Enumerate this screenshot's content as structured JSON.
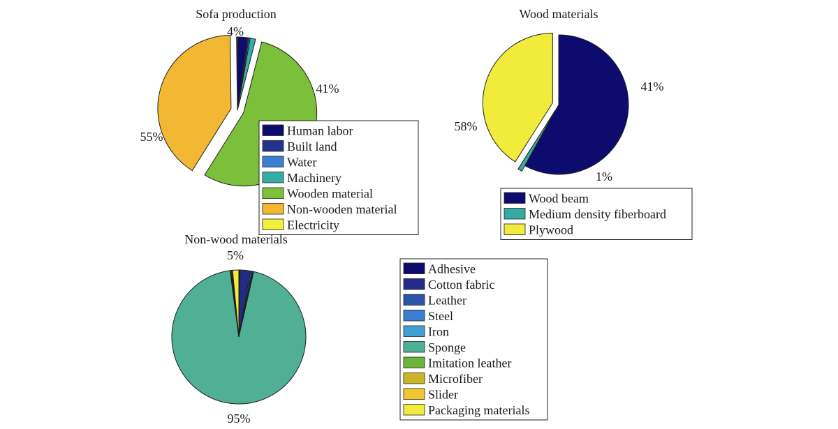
{
  "chart_data": [
    {
      "type": "pie",
      "title": "Sofa production",
      "slices": [
        {
          "name": "Human labor",
          "value": 2.2,
          "color": "#0d0b6e"
        },
        {
          "name": "Built land",
          "value": 0.3,
          "color": "#24328f"
        },
        {
          "name": "Water",
          "value": 0.3,
          "color": "#3a7fd0"
        },
        {
          "name": "Machinery",
          "value": 1.2,
          "color": "#35ada5"
        },
        {
          "name": "Wooden material",
          "value": 55,
          "color": "#7bbf3a"
        },
        {
          "name": "Non-wooden material",
          "value": 41,
          "color": "#f2b733"
        },
        {
          "name": "Electricity",
          "value": 0.2,
          "color": "#f1f13d"
        }
      ],
      "percent_labels": [
        "4%",
        "41%",
        "55%"
      ],
      "legend": [
        "Human labor",
        "Built land",
        "Water",
        "Machinery",
        "Wooden material",
        "Non-wooden material",
        "Electricity"
      ]
    },
    {
      "type": "pie",
      "title": "Wood materials",
      "slices": [
        {
          "name": "Wood beam",
          "value": 58,
          "color": "#0d0b6e"
        },
        {
          "name": "Medium density fiberboard",
          "value": 1,
          "color": "#36aba4"
        },
        {
          "name": "Plywood",
          "value": 41,
          "color": "#f1ec3b"
        }
      ],
      "percent_labels": [
        "58%",
        "1%",
        "41%"
      ],
      "legend": [
        "Wood beam",
        "Medium density fiberboard",
        "Plywood"
      ]
    },
    {
      "type": "pie",
      "title": "Non-wood materials",
      "slices": [
        {
          "name": "Adhesive",
          "value": 0.3,
          "color": "#0d0b6e"
        },
        {
          "name": "Cotton fabric",
          "value": 2.5,
          "color": "#222b88"
        },
        {
          "name": "Leather",
          "value": 0.4,
          "color": "#2c53a8"
        },
        {
          "name": "Steel",
          "value": 0.2,
          "color": "#3a7fd0"
        },
        {
          "name": "Iron",
          "value": 0.2,
          "color": "#3fa0d2"
        },
        {
          "name": "Sponge",
          "value": 95,
          "color": "#4fb096"
        },
        {
          "name": "Imitation leather",
          "value": 0.2,
          "color": "#6cb53a"
        },
        {
          "name": "Microfiber",
          "value": 0.2,
          "color": "#c9b526"
        },
        {
          "name": "Slider",
          "value": 0.2,
          "color": "#f3c52f"
        },
        {
          "name": "Packaging materials",
          "value": 1.5,
          "color": "#f1ec3b"
        }
      ],
      "percent_labels": [
        "5%",
        "95%"
      ],
      "legend": [
        "Adhesive",
        "Cotton fabric",
        "Leather",
        "Steel",
        "Iron",
        "Sponge",
        "Imitation leather",
        "Microfiber",
        "Slider",
        "Packaging materials"
      ]
    }
  ]
}
